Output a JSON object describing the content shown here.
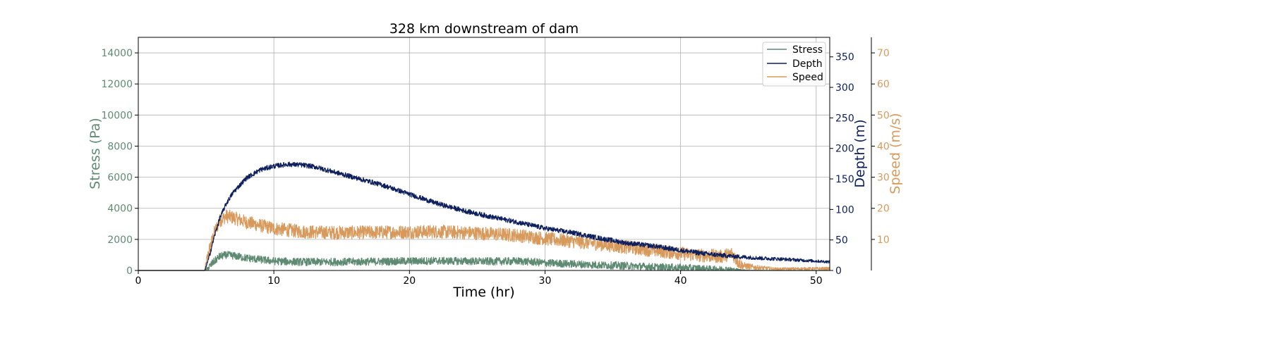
{
  "chart_data": {
    "type": "line",
    "title": "328 km downstream of dam",
    "xlabel": "Time (hr)",
    "xlim": [
      0,
      51
    ],
    "xticks": [
      0,
      10,
      20,
      30,
      40,
      50
    ],
    "grid": true,
    "legend_placement": "top-right",
    "axes": {
      "stress": {
        "label": "Stress (Pa)",
        "side": "left",
        "color": "#5e8a72",
        "lim": [
          0,
          15000
        ],
        "ticks": [
          0,
          2000,
          4000,
          6000,
          8000,
          10000,
          12000,
          14000
        ]
      },
      "depth": {
        "label": "Depth (m)",
        "side": "right",
        "color": "#0d1f5c",
        "lim": [
          0,
          382
        ],
        "ticks": [
          0,
          50,
          100,
          150,
          200,
          250,
          300,
          350
        ]
      },
      "speed": {
        "label": "Speed (m/s)",
        "side": "right-outer",
        "color": "#d89a5c",
        "lim": [
          0,
          75
        ],
        "ticks": [
          10,
          20,
          30,
          40,
          50,
          60,
          70
        ]
      }
    },
    "series": [
      {
        "name": "Stress",
        "axis": "stress",
        "color": "#5e8a72",
        "noise": 250,
        "x": [
          0,
          4.9,
          5.1,
          5.5,
          6.0,
          6.5,
          7,
          8,
          9,
          10,
          12,
          14,
          16,
          18,
          20,
          22,
          24,
          26,
          28,
          29,
          30,
          32,
          34,
          36,
          38,
          40,
          42,
          43.5,
          44,
          44.5,
          45,
          47,
          51
        ],
        "y": [
          0,
          0,
          100,
          500,
          900,
          1000,
          950,
          800,
          700,
          600,
          550,
          550,
          560,
          580,
          600,
          620,
          600,
          580,
          600,
          560,
          480,
          420,
          350,
          300,
          220,
          170,
          120,
          100,
          60,
          30,
          10,
          0,
          0
        ]
      },
      {
        "name": "Depth",
        "axis": "depth",
        "color": "#0d1f5c",
        "noise": 4,
        "x": [
          0,
          4.9,
          5.2,
          5.6,
          6,
          6.5,
          7,
          8,
          9,
          10,
          11,
          12,
          13,
          14,
          16,
          18,
          20,
          22,
          24,
          26,
          28,
          30,
          32,
          34,
          36,
          38,
          40,
          42,
          44,
          46,
          48,
          51
        ],
        "y": [
          0,
          0,
          20,
          55,
          85,
          110,
          128,
          152,
          165,
          171,
          174,
          173,
          170,
          164,
          152,
          140,
          125,
          110,
          98,
          88,
          79,
          69,
          62,
          53,
          45,
          40,
          33,
          27,
          23,
          20,
          18,
          14
        ]
      },
      {
        "name": "Speed",
        "axis": "speed",
        "color": "#d89a5c",
        "noise": 2.2,
        "x": [
          0,
          4.9,
          5.2,
          5.6,
          6,
          6.5,
          7,
          8,
          9,
          10,
          12,
          14,
          16,
          18,
          20,
          22,
          24,
          26,
          28,
          29.5,
          31,
          33,
          35,
          37,
          39,
          41,
          43,
          43.8,
          44.2,
          44.6,
          45.5,
          47,
          51
        ],
        "y": [
          0,
          0,
          6,
          12,
          16,
          17.5,
          17,
          15.5,
          14.5,
          13.5,
          12.5,
          12.2,
          12.2,
          12.3,
          12.4,
          12.5,
          12.2,
          11.8,
          11.3,
          10.5,
          9.8,
          9,
          8,
          7,
          6,
          5,
          4.5,
          5.5,
          3,
          1.5,
          1,
          0.5,
          0.6
        ]
      }
    ]
  }
}
